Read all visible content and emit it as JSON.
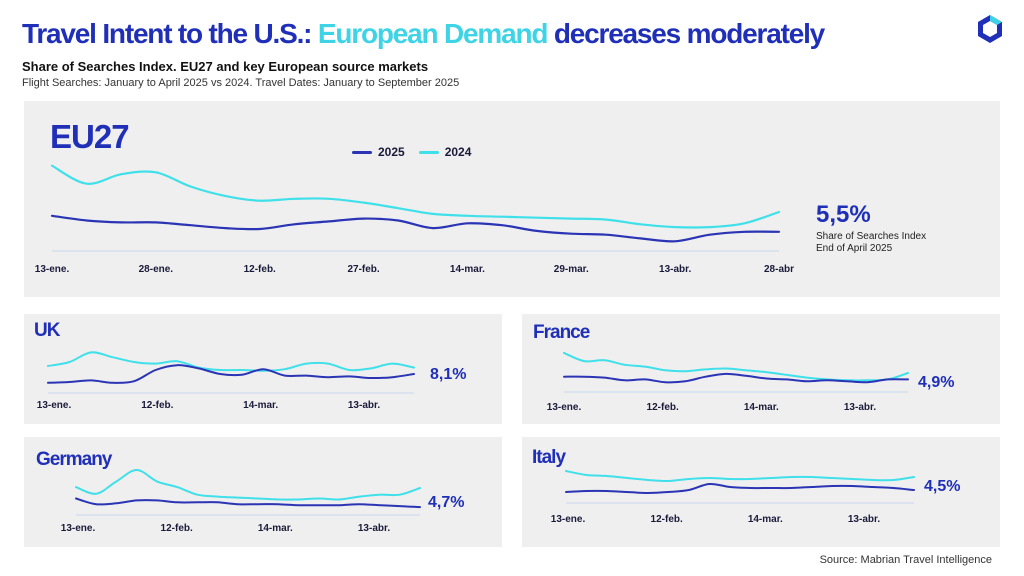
{
  "header": {
    "title_part1": "Travel Intent to the U.S.: ",
    "title_part2": "European Demand",
    "title_part3": " decreases moderately",
    "subtitle": "Share of Searches Index. EU27 and key European source markets",
    "subtitle2": "Flight Searches: January to April 2025 vs 2024. Travel Dates: January to September 2025"
  },
  "colors": {
    "y2025": "#2a34b4",
    "y2024": "#3fe0ea",
    "accent": "#1f2fb7",
    "axis": "#c8d6ee"
  },
  "source": "Source: Mabrian Travel Intelligence",
  "chart_data": [
    {
      "type": "line",
      "name": "EU27",
      "value_label": "5,5%",
      "note_line1": "Share of Searches Index",
      "note_line2": "End of April 2025",
      "legend": [
        "2025",
        "2024"
      ],
      "ticks": [
        "13-ene.",
        "28-ene.",
        "12-feb.",
        "27-feb.",
        "14-mar.",
        "29-mar.",
        "13-abr.",
        "28-abr"
      ],
      "series": [
        {
          "name": "2025",
          "values": [
            7.2,
            6.7,
            6.5,
            6.5,
            6.2,
            5.9,
            5.8,
            6.3,
            6.6,
            6.9,
            6.7,
            5.9,
            6.4,
            6.2,
            5.6,
            5.3,
            5.2,
            4.8,
            4.5,
            5.2,
            5.5,
            5.5
          ]
        },
        {
          "name": "2024",
          "values": [
            12.5,
            10.6,
            11.6,
            11.8,
            10.3,
            9.3,
            8.8,
            9.0,
            9.0,
            8.6,
            8.0,
            7.4,
            7.2,
            7.1,
            7.0,
            6.9,
            6.8,
            6.3,
            6.0,
            6.0,
            6.4,
            7.6
          ]
        }
      ]
    },
    {
      "type": "line",
      "name": "UK",
      "value_label": "8,1%",
      "ticks": [
        "13-ene.",
        "12-feb.",
        "14-mar.",
        "13-abr."
      ],
      "series": [
        {
          "name": "2025",
          "values": [
            7.4,
            7.5,
            7.7,
            7.4,
            7.6,
            9.0,
            9.6,
            9.2,
            8.5,
            8.4,
            9.1,
            8.3,
            8.3,
            8.1,
            8.2,
            8.0,
            8.1,
            8.5
          ]
        },
        {
          "name": "2024",
          "values": [
            9.5,
            10.0,
            11.2,
            10.6,
            10.0,
            9.8,
            10.1,
            9.3,
            9.0,
            9.0,
            8.9,
            9.1,
            9.8,
            9.8,
            9.0,
            9.2,
            9.8,
            9.3
          ]
        }
      ]
    },
    {
      "type": "line",
      "name": "France",
      "value_label": "4,9%",
      "ticks": [
        "13-ene.",
        "12-feb.",
        "14-mar.",
        "13-abr."
      ],
      "series": [
        {
          "name": "2025",
          "values": [
            5.2,
            5.2,
            5.1,
            4.8,
            4.9,
            4.6,
            4.7,
            5.2,
            5.5,
            5.3,
            5.0,
            4.9,
            4.7,
            4.8,
            4.7,
            4.6,
            4.9,
            4.9
          ]
        },
        {
          "name": "2024",
          "values": [
            7.8,
            6.9,
            7.0,
            6.5,
            6.3,
            5.9,
            5.8,
            6.0,
            6.1,
            5.9,
            5.7,
            5.4,
            5.1,
            4.9,
            4.8,
            4.8,
            4.9,
            5.6
          ]
        }
      ]
    },
    {
      "type": "line",
      "name": "Germany",
      "value_label": "4,7%",
      "ticks": [
        "13-ene.",
        "12-feb.",
        "14-mar.",
        "13-abr."
      ],
      "series": [
        {
          "name": "2025",
          "values": [
            5.6,
            5.0,
            5.1,
            5.4,
            5.4,
            5.2,
            5.2,
            5.2,
            5.0,
            5.0,
            5.0,
            4.9,
            4.9,
            4.9,
            5.0,
            4.9,
            4.8,
            4.7
          ]
        },
        {
          "name": "2024",
          "values": [
            6.8,
            6.1,
            7.4,
            8.6,
            7.4,
            6.8,
            6.0,
            5.8,
            5.7,
            5.6,
            5.5,
            5.5,
            5.6,
            5.5,
            5.8,
            6.0,
            6.0,
            6.7
          ]
        }
      ]
    },
    {
      "type": "line",
      "name": "Italy",
      "value_label": "4,5%",
      "ticks": [
        "13-ene.",
        "12-feb.",
        "14-mar.",
        "13-abr."
      ],
      "series": [
        {
          "name": "2025",
          "values": [
            4.3,
            4.4,
            4.4,
            4.3,
            4.2,
            4.3,
            4.5,
            5.1,
            4.8,
            4.7,
            4.7,
            4.7,
            4.8,
            4.9,
            4.9,
            4.8,
            4.7,
            4.5
          ]
        },
        {
          "name": "2024",
          "values": [
            6.4,
            6.0,
            5.9,
            5.7,
            5.5,
            5.4,
            5.6,
            5.7,
            5.6,
            5.6,
            5.7,
            5.8,
            5.8,
            5.7,
            5.6,
            5.5,
            5.5,
            5.8
          ]
        }
      ]
    }
  ]
}
